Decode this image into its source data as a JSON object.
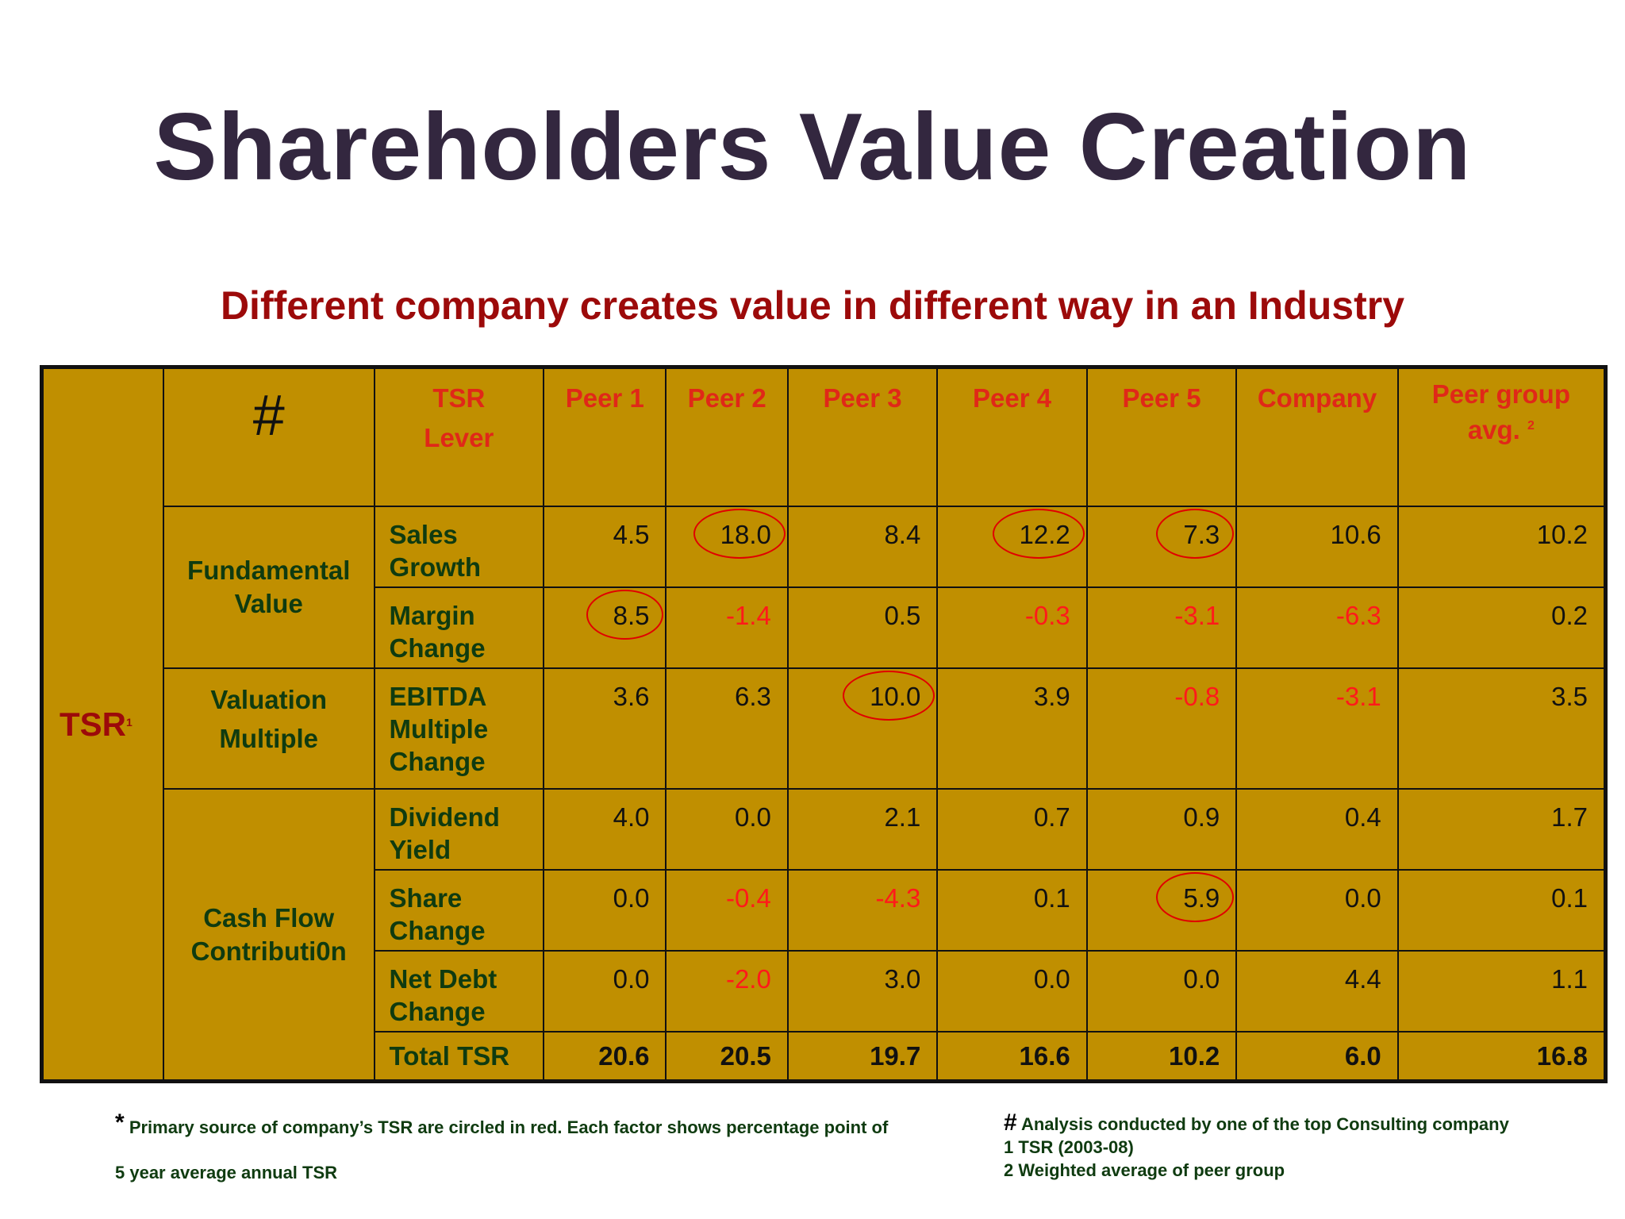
{
  "title": "Shareholders Value Creation",
  "subtitle": "Different company creates value in different way in an Industry",
  "colors": {
    "title": "#33273f",
    "subtitle": "#9c0a0a",
    "table_background": "#c08f00",
    "header_text": "#e02818",
    "label_text": "#0f3b10",
    "negative_value": "#ff1a1a",
    "highlight_circle": "#e00000"
  },
  "table": {
    "tsr_label": "TSR",
    "tsr_footnote_mark": "1",
    "hash_header": "#",
    "lever_header_line1": "TSR",
    "lever_header_line2": "Lever",
    "col_peer1": "Peer 1",
    "col_peer2": "Peer 2",
    "col_peer3": "Peer 3",
    "col_peer4": "Peer 4",
    "col_peer5": "Peer 5",
    "col_company": "Company",
    "col_avg_line1": "Peer group",
    "col_avg_line2": "avg.",
    "col_avg_mark": "2",
    "groups": {
      "fundamental": [
        "Fundamental",
        "Value"
      ],
      "valuation": [
        "Valuation",
        "Multiple"
      ],
      "cashflow": [
        "Cash Flow",
        "Contributi0n"
      ]
    },
    "rows": [
      {
        "lever": [
          "Sales",
          "Growth"
        ],
        "values": [
          "4.5",
          "18.0",
          "8.4",
          "12.2",
          "7.3",
          "10.6",
          "10.2"
        ]
      },
      {
        "lever": [
          "Margin",
          "Change"
        ],
        "values": [
          "8.5",
          "-1.4",
          "0.5",
          "-0.3",
          "-3.1",
          "-6.3",
          "0.2"
        ]
      },
      {
        "lever": [
          "EBITDA",
          "Multiple",
          "Change"
        ],
        "values": [
          "3.6",
          "6.3",
          "10.0",
          "3.9",
          "-0.8",
          "-3.1",
          "3.5"
        ]
      },
      {
        "lever": [
          "Dividend",
          "Yield"
        ],
        "values": [
          "4.0",
          "0.0",
          "2.1",
          "0.7",
          "0.9",
          "0.4",
          "1.7"
        ]
      },
      {
        "lever": [
          "Share",
          "Change"
        ],
        "values": [
          "0.0",
          "-0.4",
          "-4.3",
          "0.1",
          "5.9",
          "0.0",
          "0.1"
        ]
      },
      {
        "lever": [
          "Net Debt",
          "Change"
        ],
        "values": [
          "0.0",
          "-2.0",
          "3.0",
          "0.0",
          "0.0",
          "4.4",
          "1.1"
        ]
      }
    ],
    "total": {
      "label": "Total TSR",
      "values": [
        "20.6",
        "20.5",
        "19.7",
        "16.6",
        "10.2",
        "6.0",
        "16.8"
      ]
    }
  },
  "notes": {
    "left_star": "*",
    "left_line1": "Primary source of company’s TSR are circled in red. Each factor shows percentage point of",
    "left_line2": "5 year average annual TSR",
    "right_hash": "#",
    "right_line1": "Analysis conducted by one of the top Consulting company",
    "right_line2": "1 TSR (2003-08)",
    "right_line3": "2 Weighted average of peer group"
  }
}
